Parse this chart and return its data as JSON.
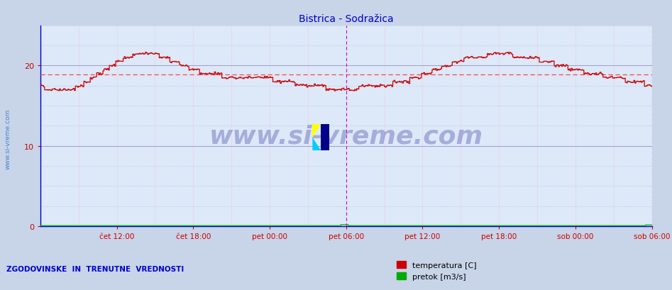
{
  "title": "Bistrica - Sodražica",
  "title_color": "#0000cc",
  "title_fontsize": 10,
  "bg_color": "#c8d4e8",
  "plot_bg_color": "#dde8f8",
  "grid_color_v": "#ffaaaa",
  "grid_color_h": "#aaaadd",
  "ylabel_left": "",
  "yticks": [
    0,
    10,
    20
  ],
  "ylim": [
    0,
    25
  ],
  "xlim": [
    0,
    576
  ],
  "xtick_labels": [
    "čet 12:00",
    "čet 18:00",
    "pet 00:00",
    "pet 06:00",
    "pet 12:00",
    "pet 18:00",
    "sob 00:00",
    "sob 06:00"
  ],
  "xtick_positions": [
    72,
    144,
    216,
    288,
    360,
    432,
    504,
    576
  ],
  "vline_positions": [
    288,
    576
  ],
  "vline_color": "#cc00cc",
  "avg_line_y": 18.9,
  "avg_line_color": "#ff4444",
  "temp_color": "#cc0000",
  "flow_color": "#00aa00",
  "watermark_text": "www.si-vreme.com",
  "watermark_color": "#000088",
  "watermark_alpha": 0.25,
  "bottom_label": "ZGODOVINSKE  IN  TRENUTNE  VREDNOSTI",
  "bottom_label_color": "#0000cc",
  "legend_labels": [
    "temperatura [C]",
    "pretok [m3/s]"
  ],
  "legend_colors": [
    "#cc0000",
    "#00aa00"
  ],
  "left_label": "www.si-vreme.com",
  "left_label_color": "#4488cc",
  "axis_color": "#0000cc",
  "tick_color": "#cc0000"
}
